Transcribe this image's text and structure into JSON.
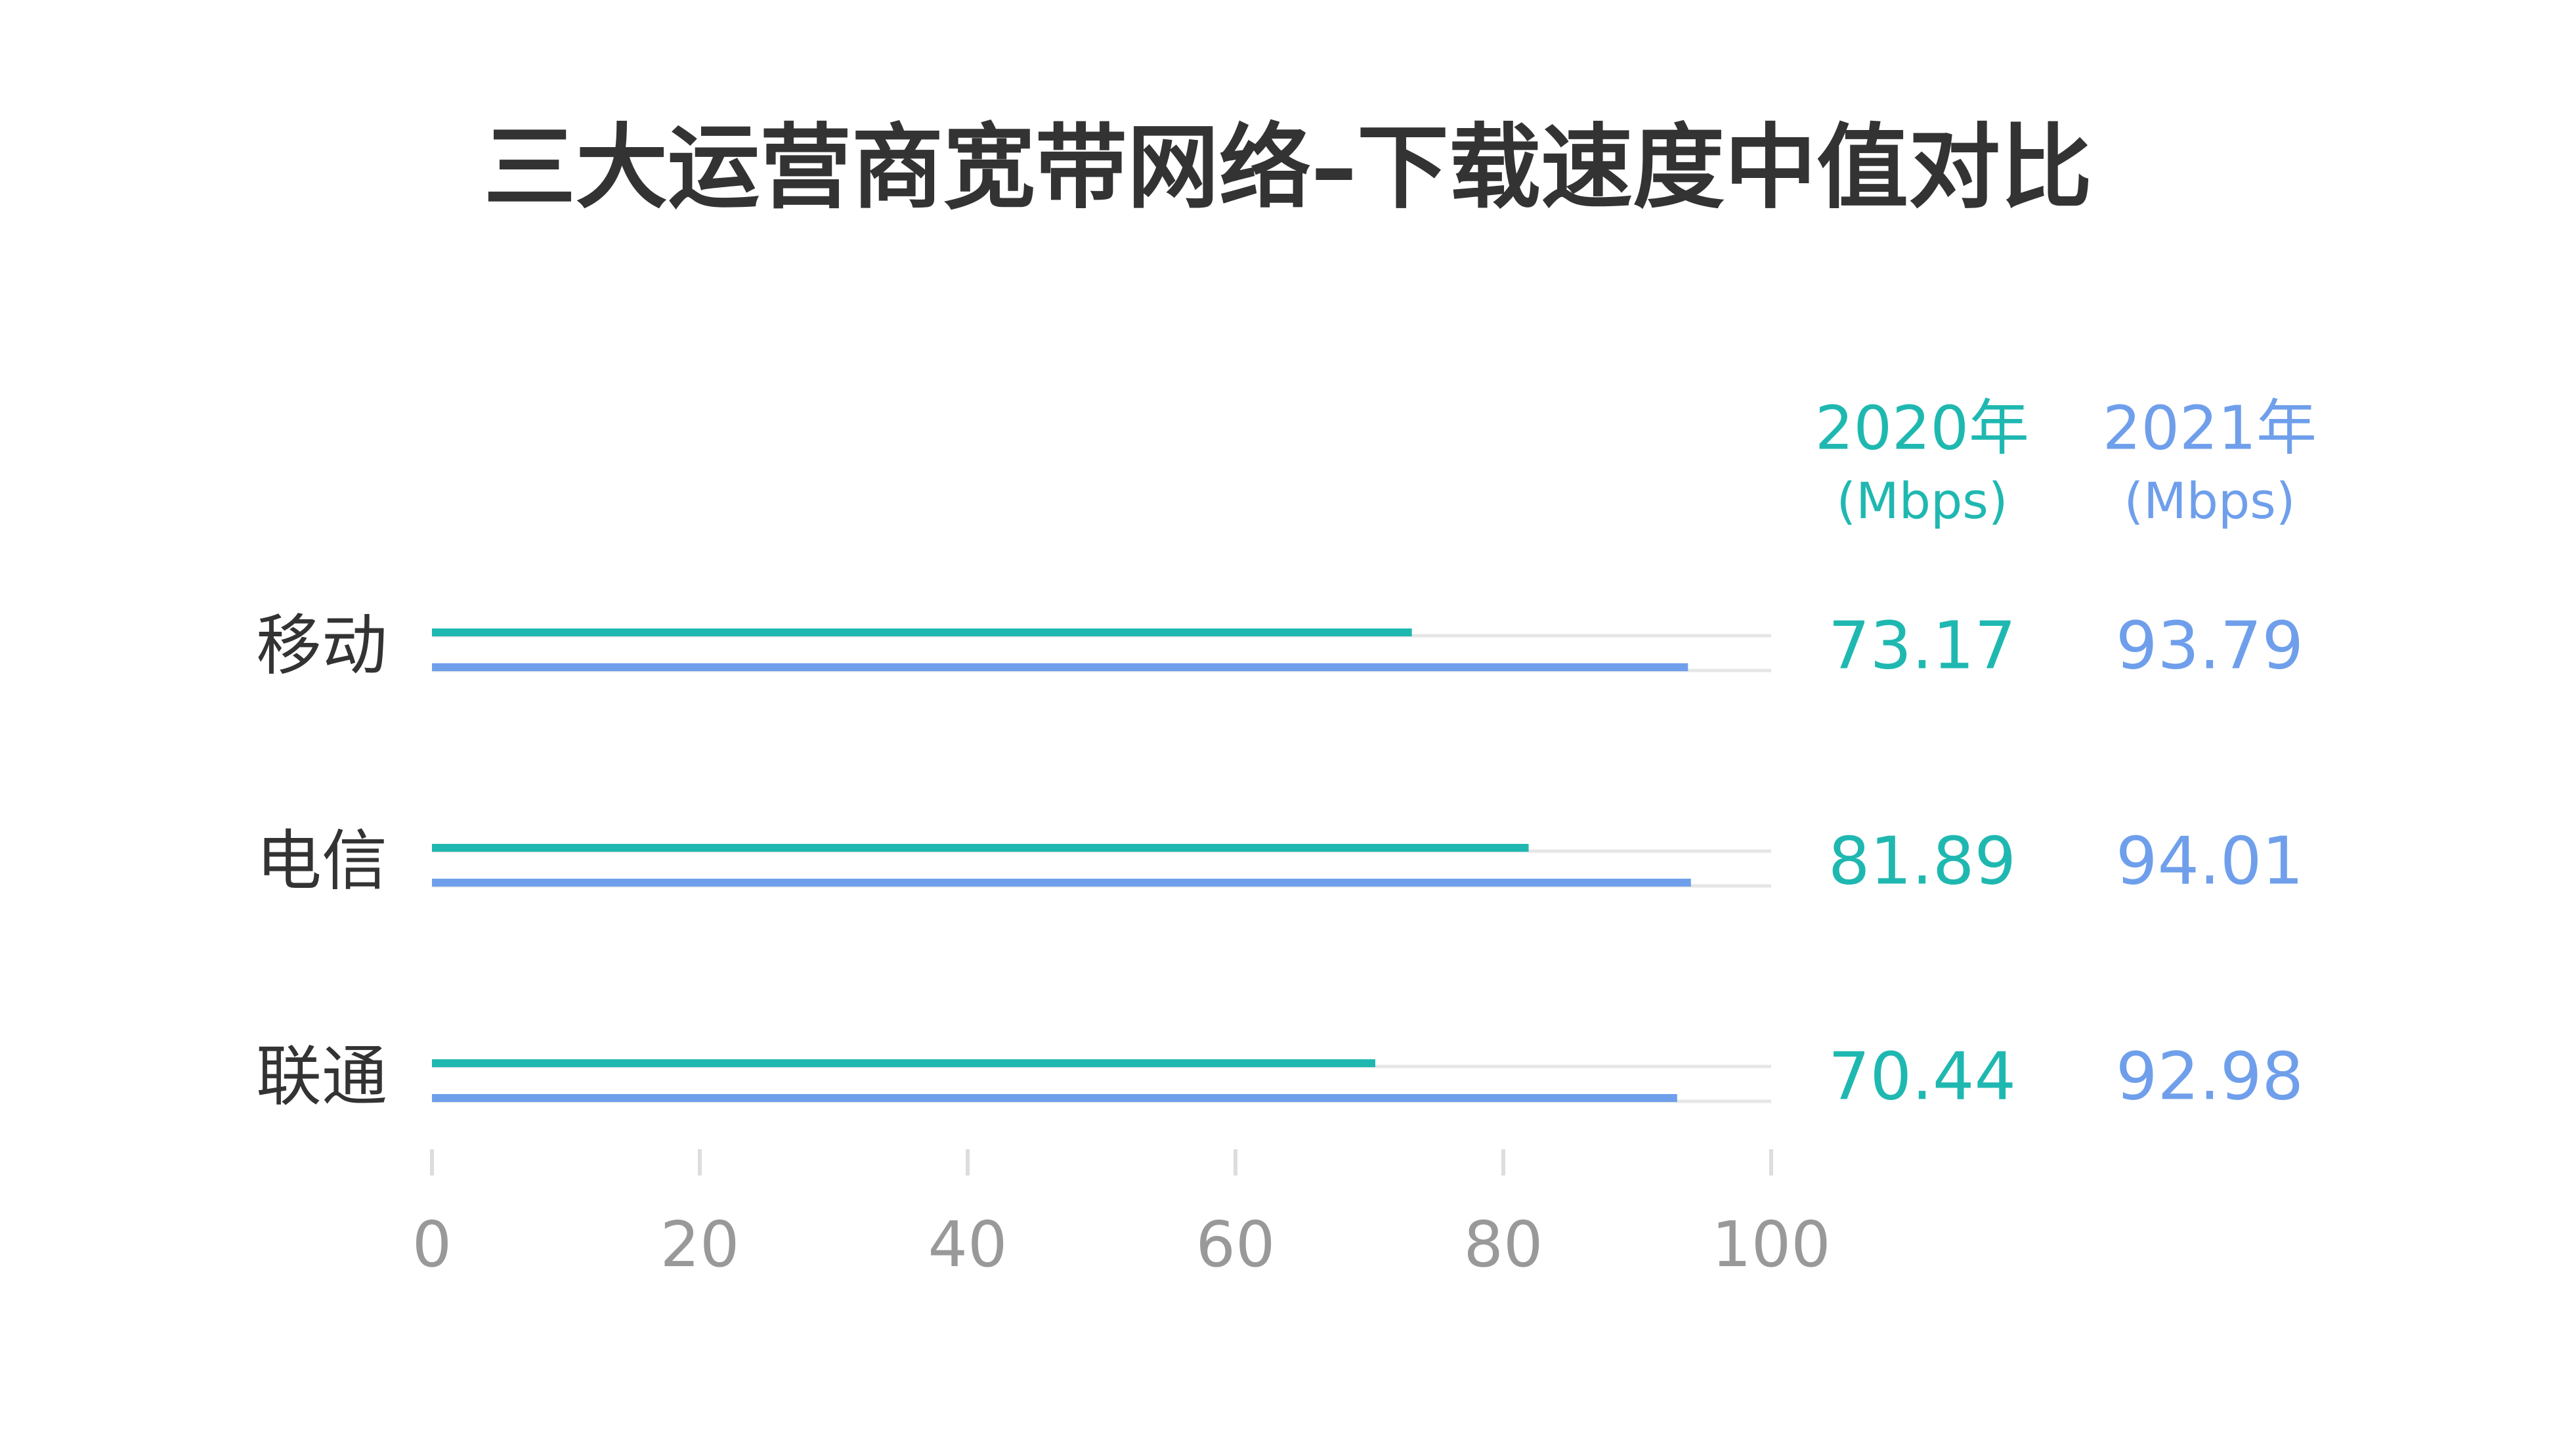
{
  "chart_data": {
    "type": "bar",
    "orientation": "horizontal",
    "title": "三大运营商宽带网络–下载速度中值对比",
    "categories": [
      "移动",
      "电信",
      "联通"
    ],
    "unit": "(Mbps)",
    "series": [
      {
        "name": "2020年",
        "color": "#1fb8b1",
        "values": [
          73.17,
          81.89,
          70.44
        ]
      },
      {
        "name": "2021年",
        "color": "#6f9feb",
        "values": [
          93.79,
          94.01,
          92.98
        ]
      }
    ],
    "xlim": [
      0,
      100
    ],
    "xticks": [
      0,
      20,
      40,
      60,
      80,
      100
    ]
  }
}
